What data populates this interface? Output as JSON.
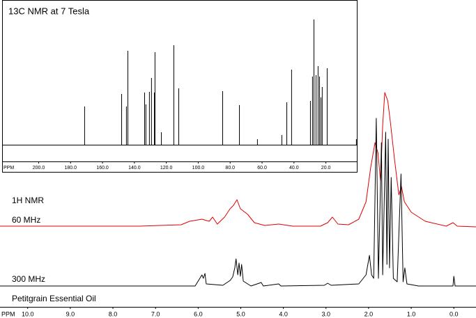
{
  "chart_data": [
    {
      "type": "stem",
      "title": "13C NMR at 7 Tesla",
      "x_label": "PPM",
      "x": [
        171.2,
        148.0,
        145.0,
        144.1,
        133.6,
        132.8,
        130.6,
        129.3,
        127.5,
        127.1,
        123.1,
        115.3,
        112.2,
        84.7,
        74.2,
        62.9,
        47.6,
        44.5,
        41.5,
        29.7,
        28.4,
        27.5,
        26.2,
        24.9,
        24.0,
        23.1,
        22.3,
        19.2,
        0.9
      ],
      "values": [
        55,
        73,
        55,
        135,
        75,
        58,
        76,
        96,
        75,
        133,
        18,
        143,
        81,
        77,
        57,
        8,
        14,
        61,
        108,
        63,
        98,
        180,
        100,
        113,
        98,
        68,
        83,
        110,
        8
      ],
      "color": "#000000",
      "xlim": [
        222.7,
        0.4
      ],
      "ylim": [
        0,
        208
      ],
      "xticks": [
        {
          "value": 200,
          "label": "200.0"
        },
        {
          "value": 180,
          "label": "180.0"
        },
        {
          "value": 160,
          "label": "160.0"
        },
        {
          "value": 140,
          "label": "140.0"
        },
        {
          "value": 120,
          "label": "120.0"
        },
        {
          "value": 100,
          "label": "100.0"
        },
        {
          "value": 80,
          "label": "80.0"
        },
        {
          "value": 60,
          "label": "60.0"
        },
        {
          "value": 40,
          "label": "40.0"
        },
        {
          "value": 20,
          "label": "20.0"
        }
      ]
    },
    {
      "type": "line",
      "title": "Petitgrain Essential Oil",
      "subtitle": "1H NMR",
      "x_label": "PPM",
      "xlim": [
        10.65,
        -0.52
      ],
      "ylim": [
        0,
        250
      ],
      "xticks": [
        {
          "value": 10,
          "label": "10.0"
        },
        {
          "value": 9,
          "label": "9.0"
        },
        {
          "value": 8,
          "label": "8.0"
        },
        {
          "value": 7,
          "label": "7.0"
        },
        {
          "value": 6,
          "label": "6.0"
        },
        {
          "value": 5,
          "label": "5.0"
        },
        {
          "value": 4,
          "label": "4.0"
        },
        {
          "value": 3,
          "label": "3.0"
        },
        {
          "value": 2,
          "label": "2.0"
        },
        {
          "value": 1,
          "label": "1.0"
        },
        {
          "value": 0,
          "label": "0.0"
        }
      ],
      "series": [
        {
          "name": "60 MHz",
          "color": "#e00000",
          "x": [
            10.65,
            7.38,
            6.4,
            6.2,
            5.91,
            5.74,
            5.66,
            5.55,
            5.38,
            5.25,
            5.17,
            5.09,
            5.01,
            4.84,
            4.68,
            4.44,
            4.11,
            3.78,
            3.13,
            2.96,
            2.85,
            2.72,
            2.47,
            2.23,
            2.06,
            1.95,
            1.85,
            1.78,
            1.72,
            1.67,
            1.62,
            1.55,
            1.49,
            1.39,
            1.29,
            1.23,
            1.16,
            1.0,
            0.67,
            0.18,
            0.02,
            -0.08,
            -0.52
          ],
          "values": [
            1,
            1,
            3,
            8,
            11,
            8,
            14,
            4,
            14,
            26,
            31,
            39,
            26,
            18,
            6,
            2,
            4,
            1,
            1,
            6,
            14,
            4,
            3,
            11,
            36,
            86,
            121,
            106,
            66,
            146,
            193,
            181,
            151,
            96,
            46,
            58,
            36,
            21,
            8,
            1,
            6,
            1,
            0
          ]
        },
        {
          "name": "300 MHz",
          "color": "#000000",
          "x": [
            10.65,
            6.07,
            5.94,
            5.91,
            5.88,
            5.84,
            5.81,
            5.42,
            5.25,
            5.19,
            5.14,
            5.11,
            5.07,
            5.04,
            5.01,
            4.98,
            4.94,
            4.76,
            4.52,
            4.47,
            4.11,
            4.06,
            3.04,
            2.96,
            2.88,
            2.23,
            2.06,
            1.98,
            1.93,
            1.88,
            1.82,
            1.77,
            1.7,
            1.67,
            1.6,
            1.57,
            1.54,
            1.51,
            1.47,
            1.42,
            1.33,
            1.24,
            1.19,
            1.15,
            1.1,
            0.83,
            0.02,
            0.0,
            -0.03,
            -0.52
          ],
          "values": [
            0,
            0,
            13,
            16,
            11,
            18,
            3,
            1,
            8,
            13,
            26,
            39,
            16,
            33,
            14,
            31,
            7,
            0,
            5,
            0,
            3,
            0,
            1,
            4,
            1,
            3,
            16,
            44,
            16,
            11,
            241,
            11,
            206,
            16,
            221,
            31,
            211,
            26,
            156,
            11,
            6,
            161,
            6,
            26,
            3,
            0,
            0,
            14,
            0,
            0
          ]
        }
      ]
    }
  ]
}
